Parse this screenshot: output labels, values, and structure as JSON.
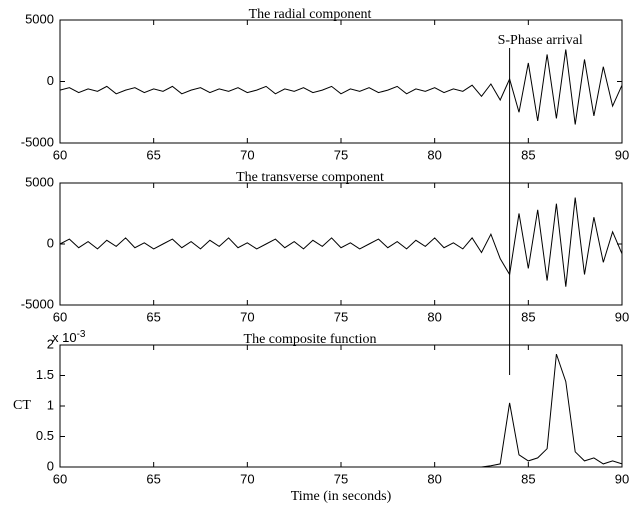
{
  "chart_data": [
    {
      "type": "line",
      "title": "The radial component",
      "x": [
        60,
        60.5,
        61,
        61.5,
        62,
        62.5,
        63,
        63.5,
        64,
        64.5,
        65,
        65.5,
        66,
        66.5,
        67,
        67.5,
        68,
        68.5,
        69,
        69.5,
        70,
        70.5,
        71,
        71.5,
        72,
        72.5,
        73,
        73.5,
        74,
        74.5,
        75,
        75.5,
        76,
        76.5,
        77,
        77.5,
        78,
        78.5,
        79,
        79.5,
        80,
        80.5,
        81,
        81.5,
        82,
        82.5,
        83,
        83.5,
        84,
        84.5,
        85,
        85.5,
        86,
        86.5,
        87,
        87.5,
        88,
        88.5,
        89,
        89.5,
        90
      ],
      "values": [
        -700,
        -500,
        -900,
        -600,
        -800,
        -400,
        -1000,
        -700,
        -500,
        -900,
        -600,
        -800,
        -400,
        -1000,
        -700,
        -500,
        -900,
        -600,
        -800,
        -500,
        -900,
        -700,
        -400,
        -1000,
        -600,
        -800,
        -500,
        -900,
        -700,
        -400,
        -1000,
        -600,
        -800,
        -500,
        -900,
        -700,
        -400,
        -1000,
        -600,
        -800,
        -500,
        -900,
        -600,
        -800,
        -300,
        -1200,
        -200,
        -1500,
        200,
        -2500,
        1500,
        -3200,
        2200,
        -3000,
        2600,
        -3500,
        1800,
        -2800,
        1200,
        -2000,
        -300
      ],
      "color": "#000000",
      "xlim": [
        60,
        90
      ],
      "xticks": [
        60,
        65,
        70,
        75,
        80,
        85,
        90
      ],
      "ylim": [
        -5000,
        5000
      ],
      "yticks": [
        -5000,
        0,
        5000
      ],
      "annotation": {
        "text": "S-Phase arrival",
        "x": 84
      }
    },
    {
      "type": "line",
      "title": "The transverse component",
      "x": [
        60,
        60.5,
        61,
        61.5,
        62,
        62.5,
        63,
        63.5,
        64,
        64.5,
        65,
        65.5,
        66,
        66.5,
        67,
        67.5,
        68,
        68.5,
        69,
        69.5,
        70,
        70.5,
        71,
        71.5,
        72,
        72.5,
        73,
        73.5,
        74,
        74.5,
        75,
        75.5,
        76,
        76.5,
        77,
        77.5,
        78,
        78.5,
        79,
        79.5,
        80,
        80.5,
        81,
        81.5,
        82,
        82.5,
        83,
        83.5,
        84,
        84.5,
        85,
        85.5,
        86,
        86.5,
        87,
        87.5,
        88,
        88.5,
        89,
        89.5,
        90
      ],
      "values": [
        0,
        400,
        -300,
        200,
        -400,
        300,
        -200,
        500,
        -300,
        100,
        -400,
        0,
        400,
        -300,
        200,
        -400,
        300,
        -200,
        500,
        -300,
        100,
        -400,
        0,
        400,
        -300,
        200,
        -400,
        300,
        -200,
        500,
        -300,
        100,
        -400,
        0,
        400,
        -300,
        200,
        -400,
        300,
        -200,
        500,
        -300,
        100,
        -400,
        500,
        -700,
        800,
        -1200,
        -2500,
        2500,
        -2000,
        2800,
        -3000,
        3300,
        -3500,
        3800,
        -2500,
        2200,
        -1500,
        1000,
        -800
      ],
      "color": "#000000",
      "xlim": [
        60,
        90
      ],
      "xticks": [
        60,
        65,
        70,
        75,
        80,
        85,
        90
      ],
      "ylim": [
        -5000,
        5000
      ],
      "yticks": [
        -5000,
        0,
        5000
      ]
    },
    {
      "type": "line",
      "title": "The composite function",
      "x": [
        60,
        60.5,
        61,
        61.5,
        62,
        62.5,
        63,
        63.5,
        64,
        64.5,
        65,
        65.5,
        66,
        66.5,
        67,
        67.5,
        68,
        68.5,
        69,
        69.5,
        70,
        70.5,
        71,
        71.5,
        72,
        72.5,
        73,
        73.5,
        74,
        74.5,
        75,
        75.5,
        76,
        76.5,
        77,
        77.5,
        78,
        78.5,
        79,
        79.5,
        80,
        80.5,
        81,
        81.5,
        82,
        82.5,
        83,
        83.5,
        84,
        84.5,
        85,
        85.5,
        86,
        86.5,
        87,
        87.5,
        88,
        88.5,
        89,
        89.5,
        90
      ],
      "values": [
        0,
        0,
        0,
        0,
        0,
        0,
        0,
        0,
        0,
        0,
        0,
        0,
        0,
        0,
        0,
        0,
        0,
        0,
        0,
        0,
        0,
        0,
        0,
        0,
        0,
        0,
        0,
        0,
        0,
        0,
        0,
        0,
        0,
        0,
        0,
        0,
        0,
        0,
        0,
        0,
        0,
        0,
        0,
        0,
        0,
        0,
        0.02,
        0.05,
        1.05,
        0.2,
        0.1,
        0.15,
        0.3,
        1.85,
        1.4,
        0.25,
        0.1,
        0.15,
        0.05,
        0.1,
        0.05
      ],
      "color": "#000000",
      "xlim": [
        60,
        90
      ],
      "xticks": [
        60,
        65,
        70,
        75,
        80,
        85,
        90
      ],
      "ylim": [
        0,
        2
      ],
      "yticks": [
        0,
        0.5,
        1,
        1.5,
        2
      ],
      "multiplier_base": "x 10",
      "multiplier_exponent": "-3",
      "x_label": "Time (in seconds)",
      "y_label": "CT"
    }
  ]
}
